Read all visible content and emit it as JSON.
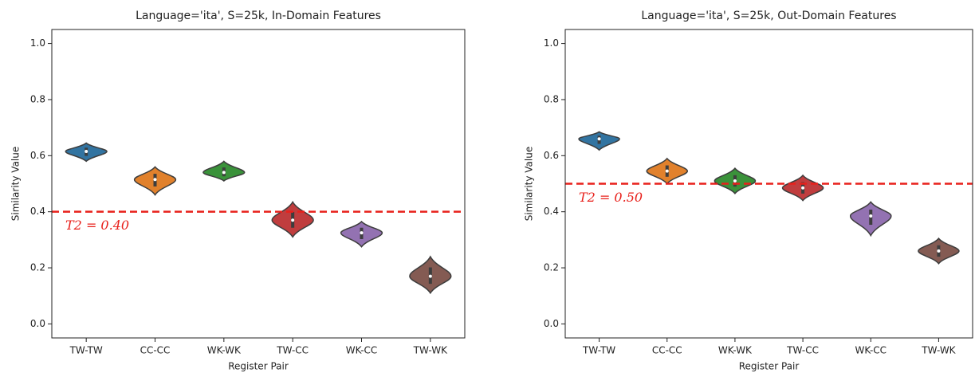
{
  "chart_data": [
    {
      "type": "violin",
      "title": "Language='ita', S=25k, In-Domain Features",
      "xlabel": "Register Pair",
      "ylabel": "Similarity Value",
      "categories": [
        "TW-TW",
        "CC-CC",
        "WK-WK",
        "TW-CC",
        "WK-CC",
        "TW-WK"
      ],
      "colors": [
        "#3274a1",
        "#e1812c",
        "#3a923a",
        "#c03d3e",
        "#9372b2",
        "#845b53"
      ],
      "values": [
        0.615,
        0.515,
        0.54,
        0.37,
        0.325,
        0.17
      ],
      "lows": [
        0.58,
        0.46,
        0.51,
        0.31,
        0.275,
        0.11
      ],
      "highs": [
        0.645,
        0.56,
        0.58,
        0.435,
        0.365,
        0.24
      ],
      "ylim": [
        -0.05,
        1.05
      ],
      "yticks": [
        {
          "value": 0,
          "label": "0.0"
        },
        {
          "value": 0.2,
          "label": "0.2"
        },
        {
          "value": 0.4,
          "label": "0.4"
        },
        {
          "value": 0.6,
          "label": "0.6"
        },
        {
          "value": 0.8,
          "label": "0.8"
        },
        {
          "value": 1,
          "label": "1.0"
        }
      ],
      "threshold": 0.4,
      "threshold_label": "T2 = 0.40",
      "threshold_color": "#e8201b"
    },
    {
      "type": "violin",
      "title": "Language='ita', S=25k, Out-Domain Features",
      "xlabel": "Register Pair",
      "ylabel": "Similarity Value",
      "categories": [
        "TW-TW",
        "CC-CC",
        "WK-WK",
        "TW-CC",
        "WK-CC",
        "TW-WK"
      ],
      "colors": [
        "#3274a1",
        "#e1812c",
        "#3a923a",
        "#c03d3e",
        "#9372b2",
        "#845b53"
      ],
      "values": [
        0.66,
        0.545,
        0.51,
        0.485,
        0.385,
        0.26
      ],
      "lows": [
        0.62,
        0.5,
        0.465,
        0.44,
        0.315,
        0.215
      ],
      "highs": [
        0.685,
        0.59,
        0.555,
        0.53,
        0.435,
        0.305
      ],
      "ylim": [
        -0.05,
        1.05
      ],
      "yticks": [
        {
          "value": 0,
          "label": "0.0"
        },
        {
          "value": 0.2,
          "label": "0.2"
        },
        {
          "value": 0.4,
          "label": "0.4"
        },
        {
          "value": 0.6,
          "label": "0.6"
        },
        {
          "value": 0.8,
          "label": "0.8"
        },
        {
          "value": 1,
          "label": "1.0"
        }
      ],
      "threshold": 0.5,
      "threshold_label": "T2 = 0.50",
      "threshold_color": "#e8201b"
    }
  ]
}
